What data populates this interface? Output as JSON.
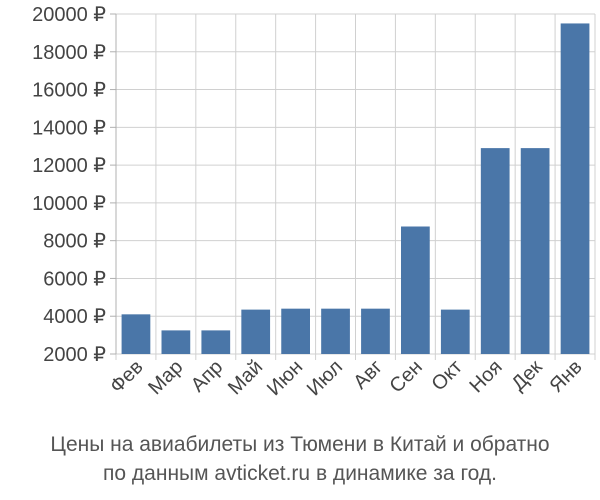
{
  "chart_data": {
    "type": "bar",
    "categories": [
      "Фев",
      "Мар",
      "Апр",
      "Май",
      "Июн",
      "Июл",
      "Авг",
      "Сен",
      "Окт",
      "Ноя",
      "Дек",
      "Янв"
    ],
    "values": [
      4100,
      3250,
      3250,
      4350,
      4400,
      4400,
      4400,
      8750,
      4350,
      12900,
      12900,
      19500
    ],
    "ylim": [
      2000,
      20000
    ],
    "yticks": [
      2000,
      4000,
      6000,
      8000,
      10000,
      12000,
      14000,
      16000,
      18000,
      20000
    ],
    "ytick_suffix": " ₽",
    "grid": true,
    "colors": {
      "bar": "#4a76a8",
      "grid": "#d0d0d0",
      "axis": "#b0b0b0"
    }
  },
  "caption": {
    "line1": "Цены на авиабилеты из Тюмени в Китай и обратно",
    "line2": "по данным avticket.ru в динамике за год."
  }
}
